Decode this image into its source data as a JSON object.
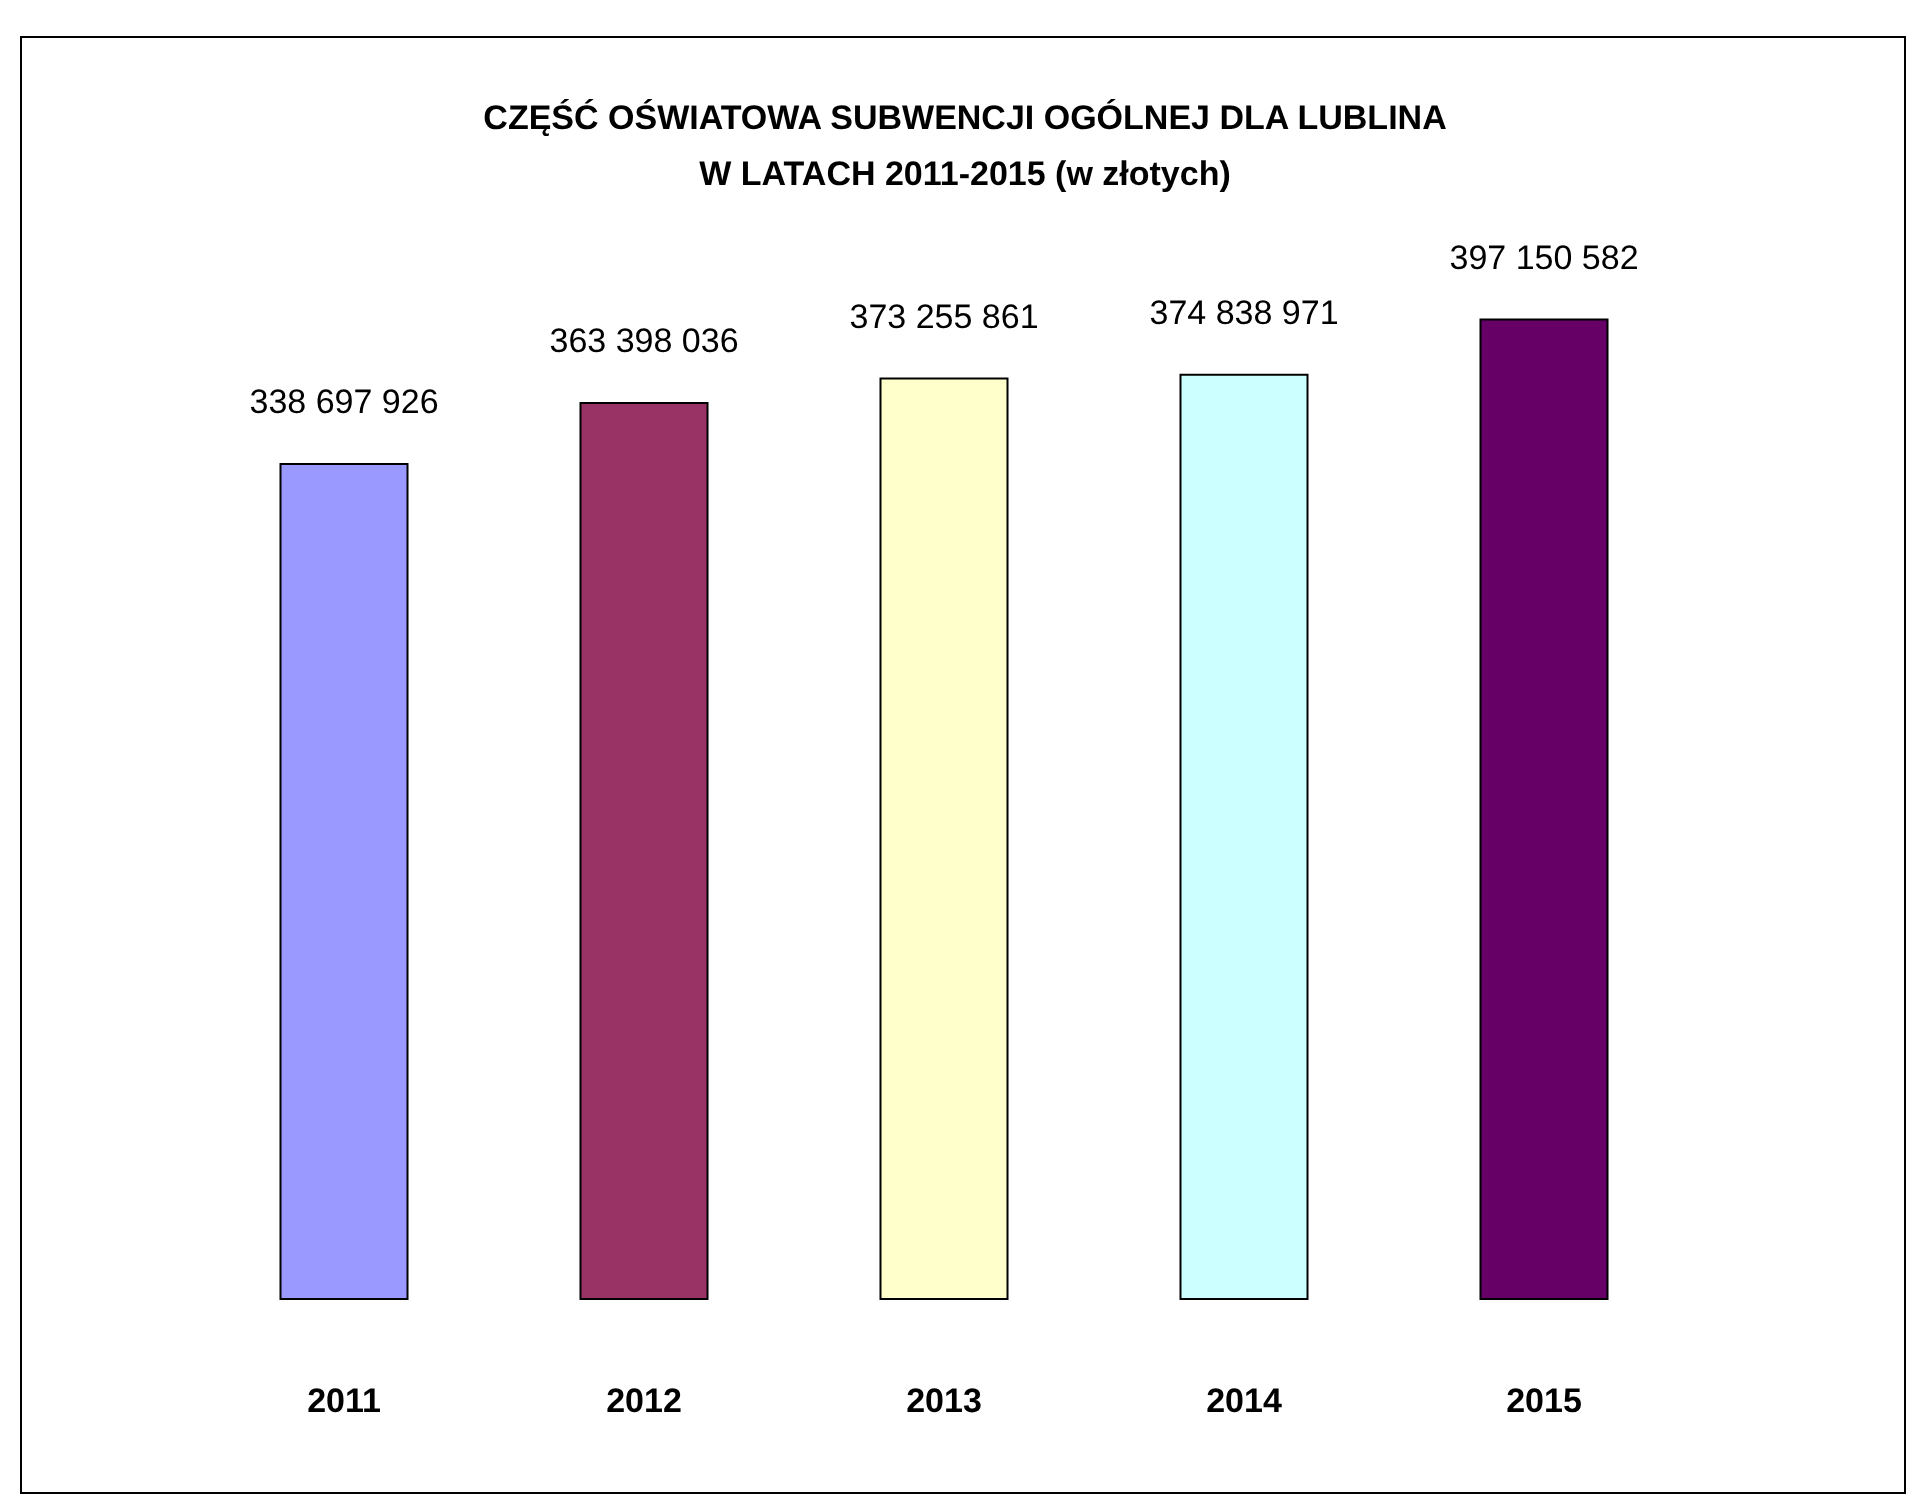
{
  "chart_data": {
    "type": "bar",
    "title": "CZĘŚĆ OŚWIATOWA SUBWENCJI OGÓLNEJ DLA LUBLINA\nW LATACH 2011-2015 (w złotych)",
    "categories": [
      "2011",
      "2012",
      "2013",
      "2014",
      "2015"
    ],
    "values": [
      338697926,
      363398036,
      373255861,
      374838971,
      397150582
    ],
    "colors": [
      "#9999ff",
      "#993366",
      "#ffffcc",
      "#ccffff",
      "#660066"
    ],
    "value_labels": [
      "338 697 926",
      "363 398 036",
      "373 255 861",
      "374 838 971",
      "397 150 582"
    ],
    "tick_labels": "x",
    "grid": false
  }
}
